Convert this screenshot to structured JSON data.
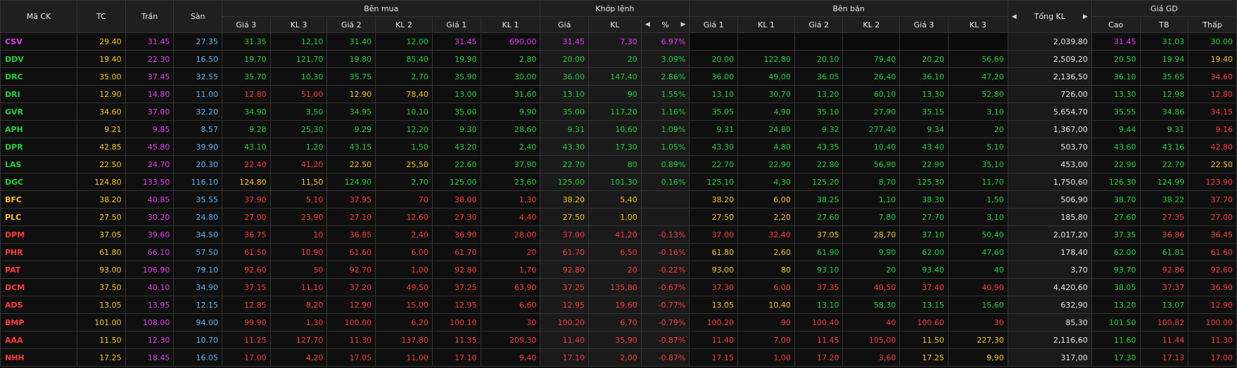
{
  "header": {
    "ma_ck": "Mã CK",
    "tc": "TC",
    "tran": "Trần",
    "san": "Sàn",
    "ben_mua": "Bên mua",
    "khop_lenh": "Khớp lệnh",
    "ben_ban": "Bên bán",
    "tong_kl": "Tổng KL",
    "gia_gd": "Giá GD",
    "gia3": "Giá 3",
    "kl3": "KL 3",
    "gia2": "Giá 2",
    "kl2": "KL 2",
    "gia1": "Giá 1",
    "kl1": "KL 1",
    "gia": "Giá",
    "kl": "KL",
    "pct": "%",
    "cao": "Cao",
    "tb": "TB",
    "thap": "Thấp"
  },
  "colors": {
    "up": "#1fd13c",
    "down": "#ff3b3b",
    "ref": "#f6c51c",
    "ceiling": "#e43ef2",
    "floor": "#5fb4f5"
  },
  "rows": [
    {
      "sym": "CSV",
      "symColor": "purple",
      "tc": "29.40",
      "tran": "31.45",
      "san": "27.35",
      "b3": [
        "31.35",
        "12,10",
        "green"
      ],
      "b2": [
        "31.40",
        "12,00",
        "green"
      ],
      "b1": [
        "31.45",
        "690,00",
        "purple"
      ],
      "m": [
        "31.45",
        "7,30",
        "6.97%",
        "purple"
      ],
      "s1": [
        "",
        "",
        ""
      ],
      "s2": [
        "",
        "",
        ""
      ],
      "s3": [
        "",
        "",
        ""
      ],
      "tong": "2,039,80",
      "cao": [
        "31.45",
        "purple"
      ],
      "tb": [
        "31.03",
        "green"
      ],
      "thap": [
        "30.00",
        "green"
      ]
    },
    {
      "sym": "DDV",
      "symColor": "green",
      "tc": "19.40",
      "tran": "22.30",
      "san": "16.50",
      "b3": [
        "19.70",
        "121,70",
        "green"
      ],
      "b2": [
        "19.80",
        "85,40",
        "green"
      ],
      "b1": [
        "19.90",
        "2,80",
        "green"
      ],
      "m": [
        "20.00",
        "20",
        "3.09%",
        "green"
      ],
      "s1": [
        "20.00",
        "122,80",
        "green"
      ],
      "s2": [
        "20.10",
        "79,40",
        "green"
      ],
      "s3": [
        "20.20",
        "56,60",
        "green"
      ],
      "tong": "2,509,20",
      "cao": [
        "20.50",
        "green"
      ],
      "tb": [
        "19.94",
        "green"
      ],
      "thap": [
        "19.40",
        "yellow"
      ]
    },
    {
      "sym": "DRC",
      "symColor": "green",
      "tc": "35.00",
      "tran": "37.45",
      "san": "32.55",
      "b3": [
        "35.70",
        "10,30",
        "green"
      ],
      "b2": [
        "35.75",
        "2,70",
        "green"
      ],
      "b1": [
        "35.90",
        "30,00",
        "green"
      ],
      "m": [
        "36.00",
        "147,40",
        "2.86%",
        "green"
      ],
      "s1": [
        "36.00",
        "49,00",
        "green"
      ],
      "s2": [
        "36.05",
        "26,40",
        "green"
      ],
      "s3": [
        "36.10",
        "47,20",
        "green"
      ],
      "tong": "2,136,50",
      "cao": [
        "36.10",
        "green"
      ],
      "tb": [
        "35.65",
        "green"
      ],
      "thap": [
        "34.60",
        "red"
      ]
    },
    {
      "sym": "DRI",
      "symColor": "green",
      "tc": "12.90",
      "tran": "14.80",
      "san": "11.00",
      "b3": [
        "12.80",
        "51,00",
        "red"
      ],
      "b2": [
        "12.90",
        "78,40",
        "yellow"
      ],
      "b1": [
        "13.00",
        "31,60",
        "green"
      ],
      "m": [
        "13.10",
        "90",
        "1.55%",
        "green"
      ],
      "s1": [
        "13.10",
        "30,70",
        "green"
      ],
      "s2": [
        "13.20",
        "60,10",
        "green"
      ],
      "s3": [
        "13.30",
        "52,80",
        "green"
      ],
      "tong": "726,00",
      "cao": [
        "13.30",
        "green"
      ],
      "tb": [
        "12.98",
        "green"
      ],
      "thap": [
        "12.80",
        "red"
      ]
    },
    {
      "sym": "GVR",
      "symColor": "green",
      "tc": "34.60",
      "tran": "37.00",
      "san": "32.20",
      "b3": [
        "34.90",
        "3,50",
        "green"
      ],
      "b2": [
        "34.95",
        "10,10",
        "green"
      ],
      "b1": [
        "35.00",
        "9,90",
        "green"
      ],
      "m": [
        "35.00",
        "117,20",
        "1.16%",
        "green"
      ],
      "s1": [
        "35.05",
        "4,90",
        "green"
      ],
      "s2": [
        "35.10",
        "27,90",
        "green"
      ],
      "s3": [
        "35.15",
        "3,10",
        "green"
      ],
      "tong": "5,654,70",
      "cao": [
        "35.55",
        "green"
      ],
      "tb": [
        "34.86",
        "green"
      ],
      "thap": [
        "34.15",
        "red"
      ]
    },
    {
      "sym": "APH",
      "symColor": "green",
      "tc": "9.21",
      "tran": "9.85",
      "san": "8.57",
      "b3": [
        "9.28",
        "25,30",
        "green"
      ],
      "b2": [
        "9.29",
        "12,20",
        "green"
      ],
      "b1": [
        "9.30",
        "28,60",
        "green"
      ],
      "m": [
        "9.31",
        "10,60",
        "1.09%",
        "green"
      ],
      "s1": [
        "9.31",
        "24,80",
        "green"
      ],
      "s2": [
        "9.32",
        "277,40",
        "green"
      ],
      "s3": [
        "9.34",
        "20",
        "green"
      ],
      "tong": "1,367,00",
      "cao": [
        "9.44",
        "green"
      ],
      "tb": [
        "9.31",
        "green"
      ],
      "thap": [
        "9.16",
        "red"
      ]
    },
    {
      "sym": "DPR",
      "symColor": "green",
      "tc": "42.85",
      "tran": "45.80",
      "san": "39.90",
      "b3": [
        "43.10",
        "1,20",
        "green"
      ],
      "b2": [
        "43.15",
        "1,50",
        "green"
      ],
      "b1": [
        "43.20",
        "2,40",
        "green"
      ],
      "m": [
        "43.30",
        "17,30",
        "1.05%",
        "green"
      ],
      "s1": [
        "43.30",
        "4,80",
        "green"
      ],
      "s2": [
        "43.35",
        "10,40",
        "green"
      ],
      "s3": [
        "43.40",
        "5,10",
        "green"
      ],
      "tong": "503,70",
      "cao": [
        "43.60",
        "green"
      ],
      "tb": [
        "43.16",
        "green"
      ],
      "thap": [
        "42.80",
        "red"
      ]
    },
    {
      "sym": "LAS",
      "symColor": "green",
      "tc": "22.50",
      "tran": "24.70",
      "san": "20.30",
      "b3": [
        "22.40",
        "41,20",
        "red"
      ],
      "b2": [
        "22.50",
        "25,50",
        "yellow"
      ],
      "b1": [
        "22.60",
        "37,90",
        "green"
      ],
      "m": [
        "22.70",
        "80",
        "0.89%",
        "green"
      ],
      "s1": [
        "22.70",
        "22,90",
        "green"
      ],
      "s2": [
        "22.80",
        "56,90",
        "green"
      ],
      "s3": [
        "22.90",
        "35,10",
        "green"
      ],
      "tong": "453,00",
      "cao": [
        "22.90",
        "green"
      ],
      "tb": [
        "22.70",
        "green"
      ],
      "thap": [
        "22.50",
        "yellow"
      ]
    },
    {
      "sym": "DGC",
      "symColor": "green",
      "tc": "124.80",
      "tran": "133.50",
      "san": "116.10",
      "b3": [
        "124.80",
        "11,50",
        "yellow"
      ],
      "b2": [
        "124.90",
        "2,70",
        "green"
      ],
      "b1": [
        "125.00",
        "23,60",
        "green"
      ],
      "m": [
        "125.00",
        "101,30",
        "0.16%",
        "green"
      ],
      "s1": [
        "125.10",
        "4,30",
        "green"
      ],
      "s2": [
        "125.20",
        "8,70",
        "green"
      ],
      "s3": [
        "125.30",
        "11,70",
        "green"
      ],
      "tong": "1,750,60",
      "cao": [
        "126.30",
        "green"
      ],
      "tb": [
        "124.99",
        "green"
      ],
      "thap": [
        "123.90",
        "red"
      ]
    },
    {
      "sym": "BFC",
      "symColor": "yellow",
      "tc": "38.20",
      "tran": "40.85",
      "san": "35.55",
      "b3": [
        "37.90",
        "5,10",
        "red"
      ],
      "b2": [
        "37.95",
        "70",
        "red"
      ],
      "b1": [
        "38.00",
        "1,30",
        "red"
      ],
      "m": [
        "38.20",
        "5,40",
        "",
        "yellow"
      ],
      "s1": [
        "38.20",
        "6,00",
        "yellow"
      ],
      "s2": [
        "38.25",
        "1,10",
        "green"
      ],
      "s3": [
        "38.30",
        "1,50",
        "green"
      ],
      "tong": "506,90",
      "cao": [
        "38.70",
        "green"
      ],
      "tb": [
        "38.22",
        "green"
      ],
      "thap": [
        "37.70",
        "red"
      ]
    },
    {
      "sym": "PLC",
      "symColor": "yellow",
      "tc": "27.50",
      "tran": "30.20",
      "san": "24.80",
      "b3": [
        "27.00",
        "23,90",
        "red"
      ],
      "b2": [
        "27.10",
        "12,60",
        "red"
      ],
      "b1": [
        "27.30",
        "4,40",
        "red"
      ],
      "m": [
        "27.50",
        "1,00",
        "",
        "yellow"
      ],
      "s1": [
        "27.50",
        "2,20",
        "yellow"
      ],
      "s2": [
        "27.60",
        "7,80",
        "green"
      ],
      "s3": [
        "27.70",
        "3,10",
        "green"
      ],
      "tong": "185,80",
      "cao": [
        "27.60",
        "green"
      ],
      "tb": [
        "27.35",
        "red"
      ],
      "thap": [
        "27.00",
        "red"
      ]
    },
    {
      "sym": "DPM",
      "symColor": "red",
      "tc": "37.05",
      "tran": "39.60",
      "san": "34.50",
      "b3": [
        "36.75",
        "10",
        "red"
      ],
      "b2": [
        "36.85",
        "2,40",
        "red"
      ],
      "b1": [
        "36.90",
        "28,00",
        "red"
      ],
      "m": [
        "37.00",
        "41,20",
        "-0.13%",
        "red"
      ],
      "s1": [
        "37.00",
        "32,40",
        "red"
      ],
      "s2": [
        "37.05",
        "28,70",
        "yellow"
      ],
      "s3": [
        "37.10",
        "50,40",
        "green"
      ],
      "tong": "2,017,20",
      "cao": [
        "37.35",
        "green"
      ],
      "tb": [
        "36.86",
        "red"
      ],
      "thap": [
        "36.45",
        "red"
      ]
    },
    {
      "sym": "PHR",
      "symColor": "red",
      "tc": "61.80",
      "tran": "66.10",
      "san": "57.50",
      "b3": [
        "61.50",
        "10,90",
        "red"
      ],
      "b2": [
        "61.60",
        "6,00",
        "red"
      ],
      "b1": [
        "61.70",
        "20",
        "red"
      ],
      "m": [
        "61.70",
        "6,50",
        "-0.16%",
        "red"
      ],
      "s1": [
        "61.80",
        "2,60",
        "yellow"
      ],
      "s2": [
        "61.90",
        "9,90",
        "green"
      ],
      "s3": [
        "62.00",
        "47,60",
        "green"
      ],
      "tong": "178,40",
      "cao": [
        "62.00",
        "green"
      ],
      "tb": [
        "61.81",
        "green"
      ],
      "thap": [
        "61.60",
        "red"
      ]
    },
    {
      "sym": "PAT",
      "symColor": "red",
      "tc": "93.00",
      "tran": "106.90",
      "san": "79.10",
      "b3": [
        "92.60",
        "50",
        "red"
      ],
      "b2": [
        "92.70",
        "1,00",
        "red"
      ],
      "b1": [
        "92.80",
        "1,70",
        "red"
      ],
      "m": [
        "92.80",
        "20",
        "-0.22%",
        "red"
      ],
      "s1": [
        "93.00",
        "80",
        "yellow"
      ],
      "s2": [
        "93.10",
        "20",
        "green"
      ],
      "s3": [
        "93.40",
        "40",
        "green"
      ],
      "tong": "3,70",
      "cao": [
        "93.70",
        "green"
      ],
      "tb": [
        "92.86",
        "red"
      ],
      "thap": [
        "92.60",
        "red"
      ]
    },
    {
      "sym": "DCM",
      "symColor": "red",
      "tc": "37.50",
      "tran": "40.10",
      "san": "34.90",
      "b3": [
        "37.15",
        "11,10",
        "red"
      ],
      "b2": [
        "37.20",
        "49,50",
        "red"
      ],
      "b1": [
        "37.25",
        "63,90",
        "red"
      ],
      "m": [
        "37.25",
        "135,80",
        "-0.67%",
        "red"
      ],
      "s1": [
        "37.30",
        "6,00",
        "red"
      ],
      "s2": [
        "37.35",
        "40,50",
        "red"
      ],
      "s3": [
        "37.40",
        "40,90",
        "red"
      ],
      "tong": "4,420,60",
      "cao": [
        "38.05",
        "green"
      ],
      "tb": [
        "37.37",
        "red"
      ],
      "thap": [
        "36.90",
        "red"
      ]
    },
    {
      "sym": "ADS",
      "symColor": "red",
      "tc": "13.05",
      "tran": "13.95",
      "san": "12.15",
      "b3": [
        "12.85",
        "8,20",
        "red"
      ],
      "b2": [
        "12.90",
        "15,00",
        "red"
      ],
      "b1": [
        "12.95",
        "6,60",
        "red"
      ],
      "m": [
        "12.95",
        "19,60",
        "-0.77%",
        "red"
      ],
      "s1": [
        "13.05",
        "10,40",
        "yellow"
      ],
      "s2": [
        "13.10",
        "58,30",
        "green"
      ],
      "s3": [
        "13.15",
        "15,60",
        "green"
      ],
      "tong": "632,90",
      "cao": [
        "13.20",
        "green"
      ],
      "tb": [
        "13.07",
        "green"
      ],
      "thap": [
        "12.90",
        "red"
      ]
    },
    {
      "sym": "BMP",
      "symColor": "red",
      "tc": "101.00",
      "tran": "108.00",
      "san": "94.00",
      "b3": [
        "99.90",
        "1,30",
        "red"
      ],
      "b2": [
        "100.00",
        "6,20",
        "red"
      ],
      "b1": [
        "100.10",
        "30",
        "red"
      ],
      "m": [
        "100.20",
        "6,70",
        "-0.79%",
        "red"
      ],
      "s1": [
        "100.20",
        "90",
        "red"
      ],
      "s2": [
        "100.40",
        "40",
        "red"
      ],
      "s3": [
        "100.60",
        "30",
        "red"
      ],
      "tong": "85,30",
      "cao": [
        "101.50",
        "green"
      ],
      "tb": [
        "100.82",
        "red"
      ],
      "thap": [
        "100.00",
        "red"
      ]
    },
    {
      "sym": "AAA",
      "symColor": "red",
      "tc": "11.50",
      "tran": "12.30",
      "san": "10.70",
      "b3": [
        "11.25",
        "127,70",
        "red"
      ],
      "b2": [
        "11.30",
        "137,80",
        "red"
      ],
      "b1": [
        "11.35",
        "209,30",
        "red"
      ],
      "m": [
        "11.40",
        "35,90",
        "-0.87%",
        "red"
      ],
      "s1": [
        "11.40",
        "7,00",
        "red"
      ],
      "s2": [
        "11.45",
        "105,00",
        "red"
      ],
      "s3": [
        "11.50",
        "227,30",
        "yellow"
      ],
      "tong": "2,116,60",
      "cao": [
        "11.60",
        "green"
      ],
      "tb": [
        "11.44",
        "red"
      ],
      "thap": [
        "11.30",
        "red"
      ]
    },
    {
      "sym": "NHH",
      "symColor": "red",
      "tc": "17.25",
      "tran": "18.45",
      "san": "16.05",
      "b3": [
        "17.00",
        "4,20",
        "red"
      ],
      "b2": [
        "17.05",
        "11,00",
        "red"
      ],
      "b1": [
        "17.10",
        "9,40",
        "red"
      ],
      "m": [
        "17.10",
        "2,00",
        "-0.87%",
        "red"
      ],
      "s1": [
        "17.15",
        "1,00",
        "red"
      ],
      "s2": [
        "17.20",
        "3,60",
        "red"
      ],
      "s3": [
        "17.25",
        "9,90",
        "yellow"
      ],
      "tong": "317,00",
      "cao": [
        "17.30",
        "green"
      ],
      "tb": [
        "17.13",
        "red"
      ],
      "thap": [
        "17.00",
        "red"
      ]
    }
  ]
}
